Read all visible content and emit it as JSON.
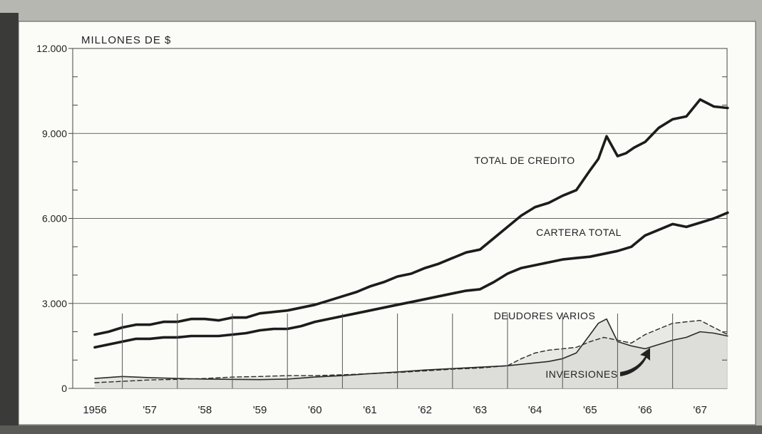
{
  "chart_data": {
    "type": "line",
    "unit_label": "MILLONES DE $",
    "ylim": [
      0,
      12000
    ],
    "y_ticks": [
      0,
      3000,
      6000,
      9000,
      12000
    ],
    "y_tick_labels": [
      "0",
      "3.000",
      "6.000",
      "9.000",
      "12.000"
    ],
    "xlim": [
      1956.0,
      1968.1
    ],
    "x_ticks": [
      1956,
      1957,
      1958,
      1959,
      1960,
      1961,
      1962,
      1963,
      1964,
      1965,
      1966,
      1967
    ],
    "x_tick_labels": [
      "1956",
      "'57",
      "'58",
      "'59",
      "'60",
      "'61",
      "'62",
      "'63",
      "'64",
      "'65",
      "'66",
      "'67"
    ],
    "grid": true,
    "series": [
      {
        "name": "TOTAL DE CREDITO",
        "style": "thick",
        "x": [
          1956.0,
          1956.25,
          1956.5,
          1956.75,
          1957.0,
          1957.25,
          1957.5,
          1957.75,
          1958.0,
          1958.25,
          1958.5,
          1958.75,
          1959.0,
          1959.25,
          1959.5,
          1959.75,
          1960.0,
          1960.25,
          1960.5,
          1960.75,
          1961.0,
          1961.25,
          1961.5,
          1961.75,
          1962.0,
          1962.25,
          1962.5,
          1962.75,
          1963.0,
          1963.25,
          1963.5,
          1963.75,
          1964.0,
          1964.25,
          1964.5,
          1964.75,
          1965.0,
          1965.15,
          1965.3,
          1965.5,
          1965.65,
          1965.8,
          1966.0,
          1966.25,
          1966.5,
          1966.75,
          1967.0,
          1967.25,
          1967.5
        ],
        "values": [
          1900,
          2000,
          2150,
          2250,
          2250,
          2350,
          2350,
          2450,
          2450,
          2400,
          2500,
          2500,
          2650,
          2700,
          2750,
          2850,
          2950,
          3100,
          3250,
          3400,
          3600,
          3750,
          3950,
          4050,
          4250,
          4400,
          4600,
          4800,
          4900,
          5300,
          5700,
          6100,
          6400,
          6550,
          6800,
          7000,
          7700,
          8100,
          8900,
          8200,
          8300,
          8500,
          8700,
          9200,
          9500,
          9600,
          10200,
          9950,
          9900
        ]
      },
      {
        "name": "CARTERA TOTAL",
        "style": "thick",
        "x": [
          1956.0,
          1956.25,
          1956.5,
          1956.75,
          1957.0,
          1957.25,
          1957.5,
          1957.75,
          1958.0,
          1958.25,
          1958.5,
          1958.75,
          1959.0,
          1959.25,
          1959.5,
          1959.75,
          1960.0,
          1960.25,
          1960.5,
          1960.75,
          1961.0,
          1961.25,
          1961.5,
          1961.75,
          1962.0,
          1962.25,
          1962.5,
          1962.75,
          1963.0,
          1963.25,
          1963.5,
          1963.75,
          1964.0,
          1964.25,
          1964.5,
          1964.75,
          1965.0,
          1965.25,
          1965.5,
          1965.75,
          1966.0,
          1966.25,
          1966.5,
          1966.75,
          1967.0,
          1967.25,
          1967.5
        ],
        "values": [
          1450,
          1550,
          1650,
          1750,
          1750,
          1800,
          1800,
          1850,
          1850,
          1850,
          1900,
          1950,
          2050,
          2100,
          2100,
          2200,
          2350,
          2450,
          2550,
          2650,
          2750,
          2850,
          2950,
          3050,
          3150,
          3250,
          3350,
          3450,
          3500,
          3750,
          4050,
          4250,
          4350,
          4450,
          4550,
          4600,
          4650,
          4750,
          4850,
          5000,
          5400,
          5600,
          5800,
          5700,
          5850,
          6000,
          6200
        ]
      },
      {
        "name": "DEUDORES VARIOS",
        "style": "thin-dashed",
        "x": [
          1956.0,
          1956.5,
          1957.0,
          1957.5,
          1958.0,
          1958.5,
          1959.0,
          1959.5,
          1960.0,
          1960.5,
          1961.0,
          1961.5,
          1962.0,
          1962.5,
          1963.0,
          1963.5,
          1963.75,
          1964.0,
          1964.25,
          1964.5,
          1964.75,
          1965.0,
          1965.25,
          1965.5,
          1965.75,
          1966.0,
          1966.25,
          1966.5,
          1966.75,
          1967.0,
          1967.25,
          1967.5
        ],
        "values": [
          200,
          250,
          300,
          320,
          350,
          400,
          420,
          450,
          450,
          480,
          520,
          560,
          620,
          680,
          720,
          800,
          1050,
          1250,
          1350,
          1400,
          1450,
          1650,
          1800,
          1700,
          1600,
          1900,
          2100,
          2300,
          2350,
          2400,
          2150,
          1900
        ]
      },
      {
        "name": "INVERSIONES",
        "style": "thin",
        "x": [
          1956.0,
          1956.5,
          1957.0,
          1957.5,
          1958.0,
          1958.5,
          1959.0,
          1959.5,
          1960.0,
          1960.5,
          1961.0,
          1961.5,
          1962.0,
          1962.5,
          1963.0,
          1963.5,
          1964.0,
          1964.25,
          1964.5,
          1964.75,
          1965.0,
          1965.15,
          1965.3,
          1965.5,
          1965.75,
          1966.0,
          1966.25,
          1966.5,
          1966.75,
          1967.0,
          1967.25,
          1967.5
        ],
        "values": [
          350,
          420,
          380,
          350,
          330,
          320,
          310,
          330,
          400,
          450,
          520,
          580,
          650,
          700,
          750,
          800,
          900,
          950,
          1050,
          1250,
          1900,
          2300,
          2450,
          1650,
          1500,
          1400,
          1550,
          1700,
          1800,
          2000,
          1950,
          1850
        ]
      }
    ]
  }
}
